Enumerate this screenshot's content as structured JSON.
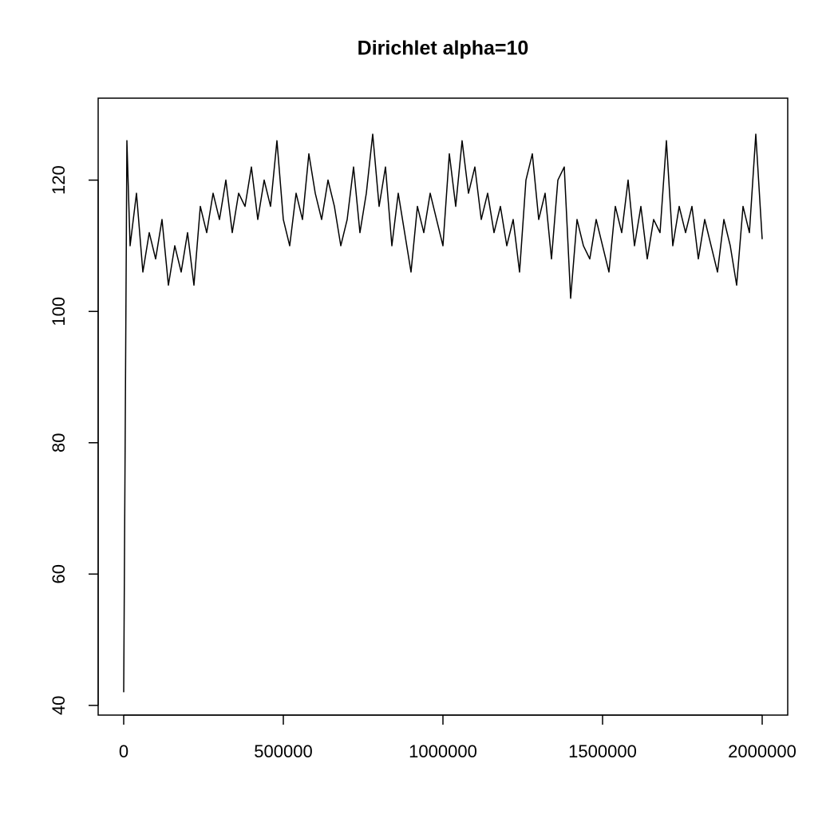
{
  "chart_data": {
    "type": "line",
    "title": "Dirichlet alpha=10",
    "x": [
      0,
      10000,
      20000,
      40000,
      60000,
      80000,
      100000,
      120000,
      140000,
      160000,
      180000,
      200000,
      220000,
      240000,
      260000,
      280000,
      300000,
      320000,
      340000,
      360000,
      380000,
      400000,
      420000,
      440000,
      460000,
      480000,
      500000,
      520000,
      540000,
      560000,
      580000,
      600000,
      620000,
      640000,
      660000,
      680000,
      700000,
      720000,
      740000,
      760000,
      780000,
      800000,
      820000,
      840000,
      860000,
      880000,
      900000,
      920000,
      940000,
      960000,
      980000,
      1000000,
      1020000,
      1040000,
      1060000,
      1080000,
      1100000,
      1120000,
      1140000,
      1160000,
      1180000,
      1200000,
      1220000,
      1240000,
      1260000,
      1280000,
      1300000,
      1320000,
      1340000,
      1360000,
      1380000,
      1400000,
      1420000,
      1440000,
      1460000,
      1480000,
      1500000,
      1520000,
      1540000,
      1560000,
      1580000,
      1600000,
      1620000,
      1640000,
      1660000,
      1680000,
      1700000,
      1720000,
      1740000,
      1760000,
      1780000,
      1800000,
      1820000,
      1840000,
      1860000,
      1880000,
      1900000,
      1920000,
      1940000,
      1960000,
      1980000,
      2000000
    ],
    "series": [
      {
        "color": "#000000",
        "values": [
          42,
          126,
          110,
          118,
          106,
          112,
          108,
          114,
          104,
          110,
          106,
          112,
          104,
          116,
          112,
          118,
          114,
          120,
          112,
          118,
          116,
          122,
          114,
          120,
          116,
          126,
          114,
          110,
          118,
          114,
          124,
          118,
          114,
          120,
          116,
          110,
          114,
          122,
          112,
          118,
          127,
          116,
          122,
          110,
          118,
          112,
          106,
          116,
          112,
          118,
          114,
          110,
          124,
          116,
          126,
          118,
          122,
          114,
          118,
          112,
          116,
          110,
          114,
          106,
          120,
          124,
          114,
          118,
          108,
          120,
          122,
          102,
          114,
          110,
          108,
          114,
          110,
          106,
          116,
          112,
          120,
          110,
          116,
          108,
          114,
          112,
          126,
          110,
          116,
          112,
          116,
          108,
          114,
          110,
          106,
          114,
          110,
          104,
          116,
          112,
          127,
          111
        ]
      }
    ],
    "xlim": [
      -80000,
      2080000
    ],
    "ylim": [
      38.52,
      132.48
    ],
    "xticks": [
      0,
      500000,
      1000000,
      1500000,
      2000000
    ],
    "yticks": [
      40,
      60,
      80,
      100,
      120
    ]
  }
}
